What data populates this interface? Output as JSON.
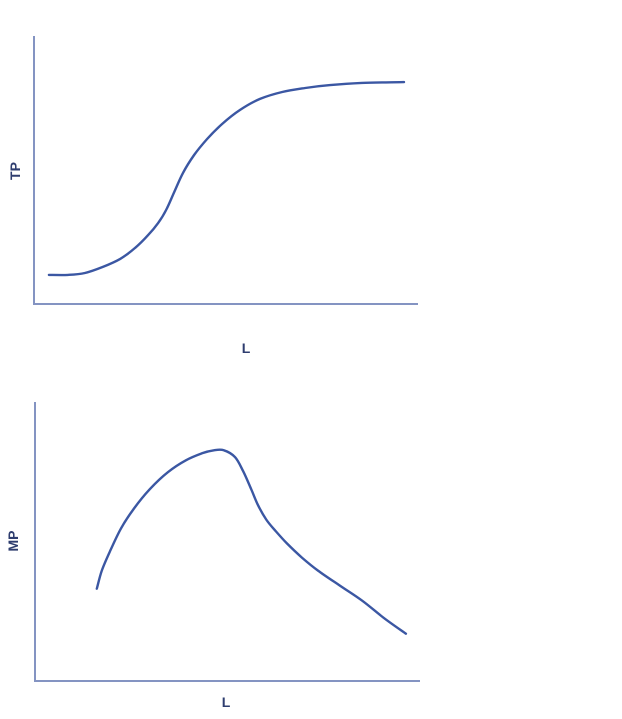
{
  "colors": {
    "background": "#ffffff",
    "axis": "#8494c2",
    "curve": "#3b57a3",
    "label": "#2e3d6f"
  },
  "chart_data": [
    {
      "type": "line",
      "title": "",
      "xlabel": "L",
      "ylabel": "TP",
      "x_range": [
        0,
        100
      ],
      "y_range": [
        0,
        100
      ],
      "grid": false,
      "legend": "none",
      "axis_ticks": "none",
      "series": [
        {
          "name": "TP",
          "points": [
            [
              3.9,
              10.9
            ],
            [
              8.9,
              10.9
            ],
            [
              13.3,
              11.6
            ],
            [
              18.0,
              13.9
            ],
            [
              22.5,
              16.9
            ],
            [
              26.4,
              21.0
            ],
            [
              29.8,
              25.8
            ],
            [
              32.4,
              30.3
            ],
            [
              34.5,
              35.2
            ],
            [
              36.6,
              41.9
            ],
            [
              38.9,
              49.1
            ],
            [
              41.8,
              55.8
            ],
            [
              45.2,
              61.8
            ],
            [
              49.1,
              67.4
            ],
            [
              53.8,
              72.7
            ],
            [
              59.0,
              76.8
            ],
            [
              64.8,
              79.4
            ],
            [
              70.8,
              80.9
            ],
            [
              77.3,
              82.0
            ],
            [
              85.6,
              82.8
            ],
            [
              96.6,
              83.1
            ]
          ]
        }
      ]
    },
    {
      "type": "line",
      "title": "",
      "xlabel": "L",
      "ylabel": "MP",
      "x_range": [
        0,
        100
      ],
      "y_range": [
        0,
        100
      ],
      "grid": false,
      "legend": "none",
      "axis_ticks": "none",
      "series": [
        {
          "name": "MP",
          "points": [
            [
              16.1,
              33.2
            ],
            [
              17.4,
              39.7
            ],
            [
              19.5,
              46.6
            ],
            [
              22.4,
              54.9
            ],
            [
              25.8,
              62.1
            ],
            [
              29.9,
              69.0
            ],
            [
              34.6,
              75.1
            ],
            [
              39.3,
              79.4
            ],
            [
              43.5,
              81.9
            ],
            [
              46.6,
              83.0
            ],
            [
              49.2,
              83.0
            ],
            [
              52.1,
              80.5
            ],
            [
              54.2,
              75.5
            ],
            [
              56.3,
              69.0
            ],
            [
              58.1,
              63.2
            ],
            [
              60.2,
              58.1
            ],
            [
              62.5,
              54.2
            ],
            [
              65.6,
              49.5
            ],
            [
              69.5,
              44.4
            ],
            [
              73.7,
              39.7
            ],
            [
              79.4,
              34.3
            ],
            [
              85.2,
              28.9
            ],
            [
              91.1,
              22.4
            ],
            [
              96.6,
              17.0
            ]
          ]
        }
      ]
    }
  ]
}
